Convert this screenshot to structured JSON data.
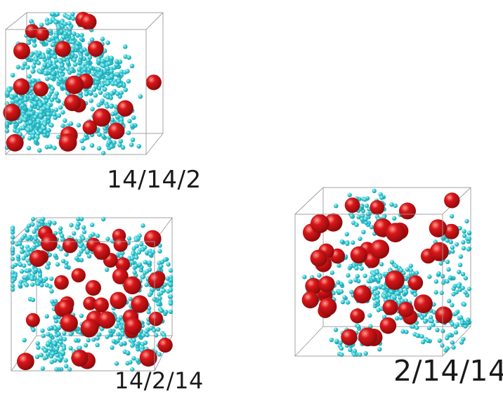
{
  "figure": {
    "panels": [
      {
        "id": "a",
        "label": "14/14/2",
        "large_spheres": 22,
        "small_spheres": 900
      },
      {
        "id": "b",
        "label": "14/2/14",
        "large_spheres": 42,
        "small_spheres": 650
      },
      {
        "id": "c",
        "label": "2/14/14",
        "large_spheres": 42,
        "small_spheres": 520
      }
    ],
    "colors": {
      "large_sphere": "#d8161a",
      "large_sphere_shade": "#8c0a0b",
      "small_sphere": "#39d0d8",
      "small_sphere_shade": "#1a98a8",
      "box_edge": "#9a9a9a"
    }
  }
}
